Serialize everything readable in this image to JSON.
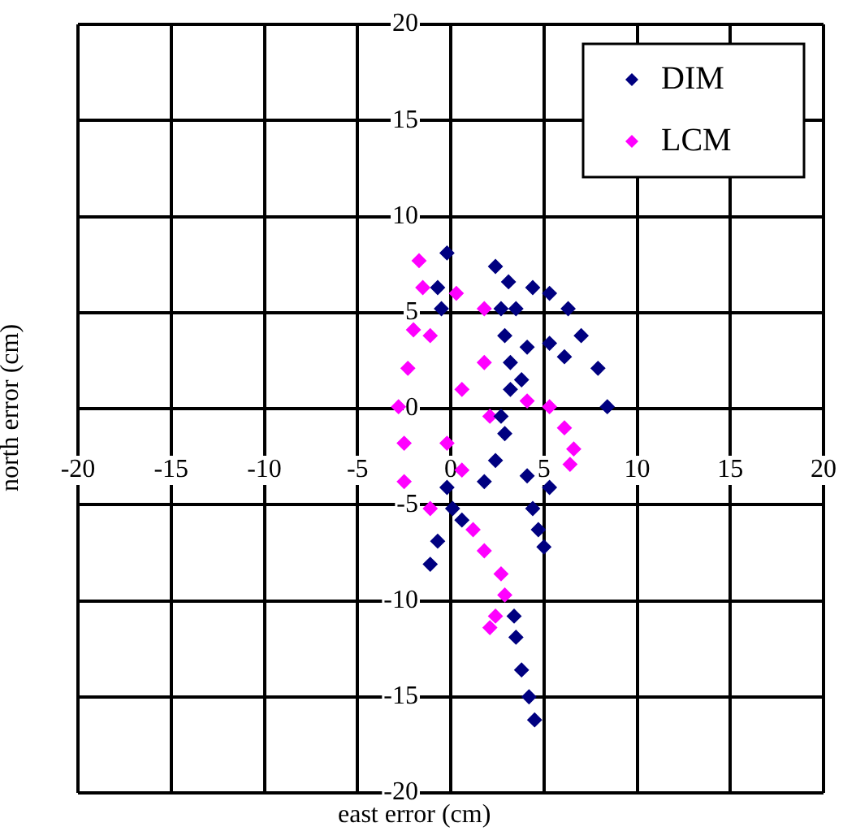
{
  "chart_data": {
    "type": "scatter",
    "xlabel": "east error (cm)",
    "ylabel": "north error (cm)",
    "xlim": [
      -20,
      20
    ],
    "ylim": [
      -20,
      20
    ],
    "xticks": [
      -20,
      -15,
      -10,
      -5,
      0,
      5,
      10,
      15,
      20
    ],
    "yticks": [
      -20,
      -15,
      -10,
      -5,
      0,
      5,
      10,
      15,
      20
    ],
    "grid": true,
    "legend": "top right",
    "marker": "diamond",
    "series": [
      {
        "name": "DIM",
        "color": "#000080",
        "x": [
          -0.2,
          -0.7,
          -0.5,
          2.4,
          3.1,
          2.7,
          2.9,
          3.2,
          3.8,
          4.4,
          5.3,
          6.3,
          7.0,
          7.9,
          8.4,
          3.5,
          4.1,
          5.3,
          6.1,
          2.9,
          2.4,
          1.8,
          4.1,
          5.3,
          4.4,
          4.7,
          5.0,
          -0.2,
          0.1,
          0.6,
          -0.7,
          -1.1,
          3.4,
          3.5,
          3.8,
          4.2,
          4.5,
          3.2,
          2.7
        ],
        "values": [
          8.1,
          6.3,
          5.2,
          7.4,
          6.6,
          5.2,
          3.8,
          2.4,
          1.5,
          6.3,
          6.0,
          5.2,
          3.8,
          2.1,
          0.1,
          5.2,
          3.2,
          3.4,
          2.7,
          -1.3,
          -2.7,
          -3.8,
          -3.5,
          -4.1,
          -5.2,
          -6.3,
          -7.2,
          -4.1,
          -5.2,
          -5.8,
          -6.9,
          -8.1,
          -10.8,
          -11.9,
          -13.6,
          -15.0,
          -16.2,
          1.0,
          -0.4
        ]
      },
      {
        "name": "LCM",
        "color": "#ff00ff",
        "x": [
          -1.7,
          -1.5,
          -2.0,
          0.3,
          1.8,
          -1.1,
          -2.3,
          -2.8,
          -2.5,
          -2.5,
          -1.1,
          1.2,
          0.6,
          -0.2,
          1.8,
          2.1,
          0.6,
          4.1,
          5.3,
          6.1,
          6.6,
          6.4,
          1.8,
          2.7,
          2.9,
          2.4,
          2.1
        ],
        "values": [
          7.7,
          6.3,
          4.1,
          6.0,
          5.2,
          3.8,
          2.1,
          0.1,
          -1.8,
          -3.8,
          -5.2,
          -6.3,
          1.0,
          -1.8,
          2.4,
          -0.4,
          -3.2,
          0.4,
          0.1,
          -1.0,
          -2.1,
          -2.9,
          -7.4,
          -8.6,
          -9.7,
          -10.8,
          -11.4
        ]
      }
    ]
  }
}
